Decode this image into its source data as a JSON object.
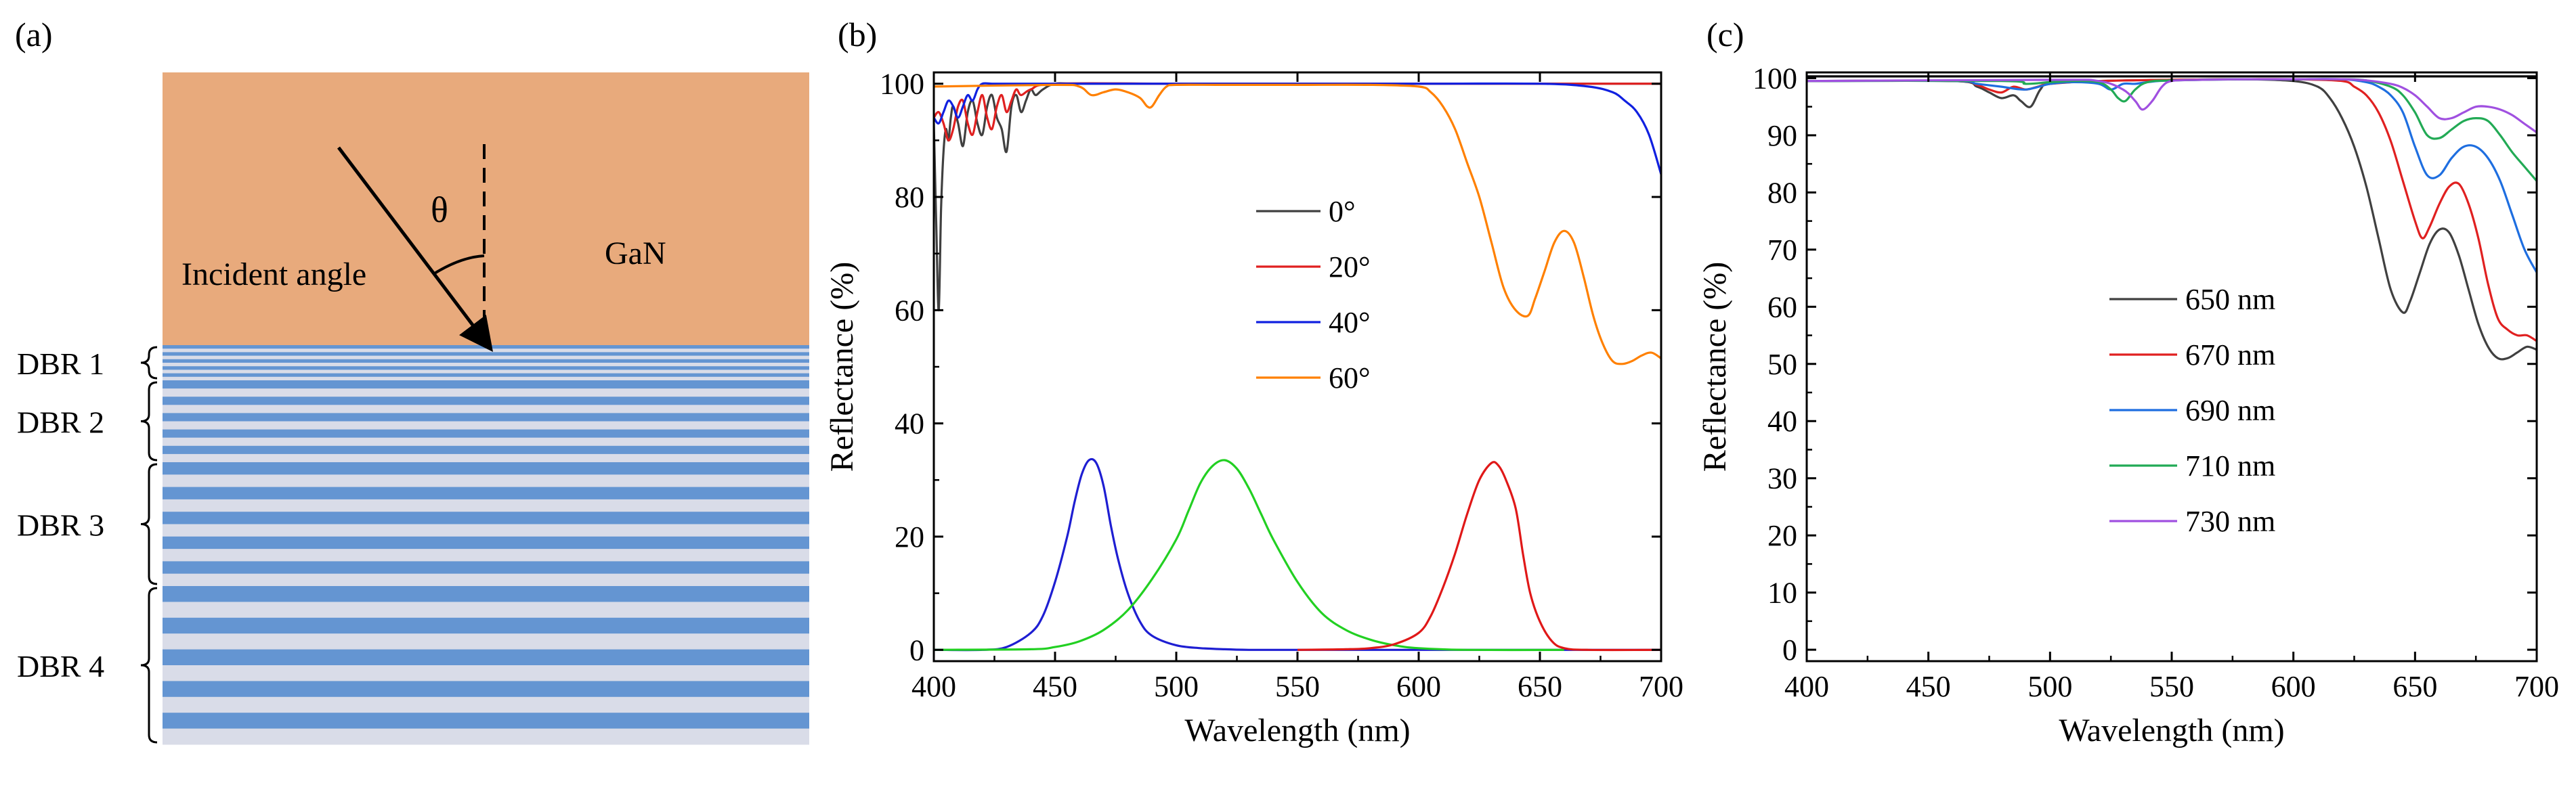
{
  "panel_a": {
    "label": "(a)",
    "gan_label": "GaN",
    "angle_symbol": "θ",
    "incident_label": "Incident angle",
    "dbr_labels": [
      "DBR 1",
      "DBR 2",
      "DBR 3",
      "DBR 4"
    ],
    "dbr_pairs": [
      5,
      5,
      5,
      5
    ],
    "colors": {
      "gan": "#E8AA7C",
      "dbr_dark": "#6495D2",
      "dbr_light": "#D9DCE8"
    }
  },
  "panel_b": {
    "label": "(b)"
  },
  "panel_c": {
    "label": "(c)"
  },
  "chart_data": [
    {
      "type": "line",
      "title": "",
      "xlabel": "Wavelength (nm)",
      "ylabel": "Reflectance (%)",
      "xlim": [
        400,
        700
      ],
      "ylim": [
        -2,
        102
      ],
      "xticks": [
        400,
        450,
        500,
        550,
        600,
        650,
        700
      ],
      "yticks": [
        0,
        20,
        40,
        60,
        80,
        100
      ],
      "legend_position": "center",
      "series": [
        {
          "name": "0°",
          "color": "#404040",
          "x": [
            400,
            401,
            402,
            403,
            404,
            405,
            406,
            407,
            408,
            410,
            412,
            414,
            416,
            418,
            420,
            422,
            424,
            426,
            428,
            430,
            432,
            434,
            436,
            438,
            440,
            442,
            445,
            450,
            460,
            500,
            550,
            600,
            650,
            700
          ],
          "y": [
            93,
            75,
            60,
            78,
            88,
            92,
            90,
            94,
            96,
            93,
            89,
            95,
            97,
            93,
            91,
            96,
            98,
            94,
            92,
            88,
            96,
            98,
            95,
            97,
            99,
            98,
            99,
            100,
            100,
            100,
            100,
            100,
            100,
            100
          ]
        },
        {
          "name": "20°",
          "color": "#E02020",
          "x": [
            400,
            402,
            404,
            406,
            408,
            410,
            412,
            414,
            416,
            418,
            420,
            422,
            424,
            426,
            428,
            430,
            432,
            434,
            436,
            440,
            450,
            500,
            550,
            600,
            650,
            700
          ],
          "y": [
            94,
            95,
            93,
            90,
            92,
            96,
            97,
            93,
            91,
            95,
            98,
            94,
            92,
            96,
            98,
            95,
            97,
            99,
            98,
            99,
            100,
            100,
            100,
            100,
            100,
            100
          ]
        },
        {
          "name": "40°",
          "color": "#1020E0",
          "x": [
            400,
            402,
            404,
            406,
            408,
            410,
            412,
            414,
            416,
            418,
            420,
            424,
            428,
            440,
            500,
            600,
            650,
            670,
            680,
            685,
            690,
            695,
            700
          ],
          "y": [
            94,
            93,
            95,
            97,
            96,
            94,
            96,
            98,
            97,
            99,
            100,
            100,
            100,
            100,
            100,
            100,
            100,
            99.5,
            98.5,
            97,
            95,
            91,
            84
          ]
        },
        {
          "name": "60°",
          "color": "#FF8000",
          "x": [
            400,
            450,
            460,
            465,
            470,
            475,
            480,
            485,
            488,
            490,
            493,
            496,
            500,
            520,
            550,
            580,
            600,
            605,
            610,
            615,
            620,
            625,
            630,
            635,
            640,
            645,
            648,
            652,
            656,
            660,
            664,
            668,
            672,
            676,
            680,
            684,
            688,
            692,
            696,
            700
          ],
          "y": [
            99.5,
            99.8,
            99.5,
            98,
            98.5,
            99,
            98.5,
            97.5,
            96,
            96,
            98,
            99.5,
            99.8,
            99.8,
            99.8,
            99.8,
            99.5,
            98.5,
            96,
            92,
            86,
            80,
            72,
            64,
            60,
            59,
            62,
            67,
            72,
            74,
            72,
            66,
            59,
            54,
            51,
            50.5,
            51,
            52,
            52.5,
            51.5
          ]
        },
        {
          "name": "blue emission",
          "color": "#1E1ED2",
          "legend": false,
          "x": [
            400,
            420,
            430,
            440,
            445,
            450,
            455,
            458,
            461,
            464,
            467,
            470,
            473,
            476,
            480,
            485,
            490,
            500,
            510,
            520,
            530,
            550,
            600,
            650,
            700
          ],
          "y": [
            0,
            0,
            0.5,
            3,
            6,
            12,
            20,
            26,
            31,
            33.5,
            33,
            29,
            22,
            16,
            10,
            5,
            2.5,
            0.8,
            0.3,
            0.1,
            0,
            0,
            0,
            0,
            0
          ]
        },
        {
          "name": "green emission",
          "color": "#22D022",
          "legend": false,
          "x": [
            400,
            440,
            450,
            460,
            470,
            480,
            490,
            500,
            505,
            510,
            515,
            520,
            525,
            530,
            535,
            540,
            550,
            560,
            570,
            580,
            590,
            600,
            620,
            660
          ],
          "y": [
            0,
            0.1,
            0.5,
            1.5,
            3.5,
            7,
            12.5,
            19.5,
            24.5,
            29.5,
            32.5,
            33.5,
            32,
            28.5,
            24,
            19.5,
            12,
            6.5,
            3.5,
            1.8,
            0.8,
            0.3,
            0,
            0
          ]
        },
        {
          "name": "red emission",
          "color": "#E01818",
          "legend": false,
          "x": [
            550,
            570,
            580,
            590,
            600,
            605,
            610,
            615,
            620,
            625,
            630,
            633,
            636,
            640,
            643,
            646,
            650,
            655,
            660,
            670,
            700
          ],
          "y": [
            0,
            0.1,
            0.3,
            1,
            3,
            6,
            11,
            17,
            24,
            30,
            33,
            32.5,
            30,
            25,
            17,
            10,
            5,
            1.5,
            0.3,
            0,
            0
          ]
        }
      ]
    },
    {
      "type": "line",
      "title": "",
      "xlabel": "Wavelength (nm)",
      "ylabel": "Reflectance (%)",
      "xlim": [
        400,
        700
      ],
      "ylim": [
        -2,
        101
      ],
      "xticks": [
        400,
        450,
        500,
        550,
        600,
        650,
        700
      ],
      "yticks": [
        0,
        10,
        20,
        30,
        40,
        50,
        60,
        70,
        80,
        90,
        100
      ],
      "legend_position": "center-left",
      "series": [
        {
          "name": "650 nm",
          "color": "#404040",
          "x": [
            400,
            460,
            470,
            475,
            480,
            485,
            488,
            492,
            496,
            500,
            520,
            550,
            580,
            600,
            610,
            615,
            620,
            625,
            630,
            635,
            640,
            645,
            648,
            652,
            656,
            660,
            664,
            668,
            672,
            676,
            680,
            684,
            688,
            692,
            696,
            700
          ],
          "y": [
            99.5,
            99.5,
            98.5,
            97.5,
            96.5,
            97,
            96,
            95,
            98,
            99,
            99.5,
            99.7,
            99.8,
            99.5,
            98.5,
            96.5,
            93,
            88,
            81,
            72,
            63,
            59,
            61,
            66,
            71,
            73.5,
            73,
            69,
            63,
            57,
            53,
            51,
            51,
            52,
            53,
            52.5
          ]
        },
        {
          "name": "670 nm",
          "color": "#E02020",
          "x": [
            400,
            460,
            470,
            475,
            480,
            485,
            490,
            495,
            500,
            520,
            550,
            580,
            600,
            620,
            625,
            630,
            635,
            640,
            645,
            650,
            653,
            656,
            660,
            664,
            668,
            672,
            676,
            680,
            684,
            688,
            692,
            696,
            700
          ],
          "y": [
            99.5,
            99.5,
            98.8,
            98,
            97.5,
            98.5,
            98,
            98.5,
            99,
            99.5,
            99.7,
            99.8,
            99.8,
            99.5,
            98.5,
            97,
            94,
            89,
            82,
            75,
            72,
            74,
            78,
            81,
            81.5,
            78,
            72,
            64,
            58,
            56,
            55,
            55,
            54
          ]
        },
        {
          "name": "690 nm",
          "color": "#1E6EE0",
          "x": [
            400,
            460,
            470,
            480,
            490,
            500,
            510,
            520,
            525,
            530,
            535,
            540,
            550,
            580,
            600,
            620,
            630,
            635,
            640,
            645,
            650,
            655,
            660,
            665,
            670,
            675,
            680,
            685,
            690,
            695,
            700
          ],
          "y": [
            99.5,
            99.5,
            99,
            98.5,
            98,
            99,
            99.3,
            99,
            98,
            99,
            99,
            99.3,
            99.6,
            99.8,
            99.8,
            99.8,
            99.3,
            98.5,
            97,
            94,
            88,
            83,
            83,
            86,
            88,
            88,
            86,
            82,
            76,
            70,
            66
          ]
        },
        {
          "name": "710 nm",
          "color": "#22AA55",
          "x": [
            400,
            480,
            490,
            500,
            510,
            520,
            525,
            528,
            531,
            535,
            540,
            550,
            580,
            600,
            620,
            630,
            640,
            645,
            650,
            655,
            660,
            665,
            670,
            675,
            680,
            685,
            690,
            695,
            700
          ],
          "y": [
            99.5,
            99.5,
            99,
            99.3,
            99.5,
            99.3,
            98,
            96.5,
            96,
            98,
            99.3,
            99.6,
            99.8,
            99.8,
            99.8,
            99.6,
            98.5,
            97,
            94,
            90,
            89.5,
            91,
            92.5,
            93,
            92.5,
            90,
            87,
            84.5,
            82
          ]
        },
        {
          "name": "730 nm",
          "color": "#A050E0",
          "x": [
            400,
            500,
            520,
            530,
            535,
            538,
            542,
            546,
            550,
            560,
            580,
            600,
            620,
            630,
            640,
            645,
            650,
            655,
            660,
            665,
            670,
            675,
            680,
            685,
            690,
            695,
            700
          ],
          "y": [
            99.5,
            99.7,
            99.5,
            98,
            96,
            94.5,
            96,
            98.5,
            99.5,
            99.7,
            99.8,
            99.8,
            99.8,
            99.6,
            99,
            98.3,
            97,
            95,
            93,
            93,
            94,
            95,
            95,
            94.5,
            93.5,
            92,
            90.5
          ]
        },
        {
          "name": "top reference",
          "color": "#000000",
          "legend": false,
          "x": [
            400,
            700
          ],
          "y": [
            100.3,
            100.3
          ]
        }
      ]
    }
  ]
}
